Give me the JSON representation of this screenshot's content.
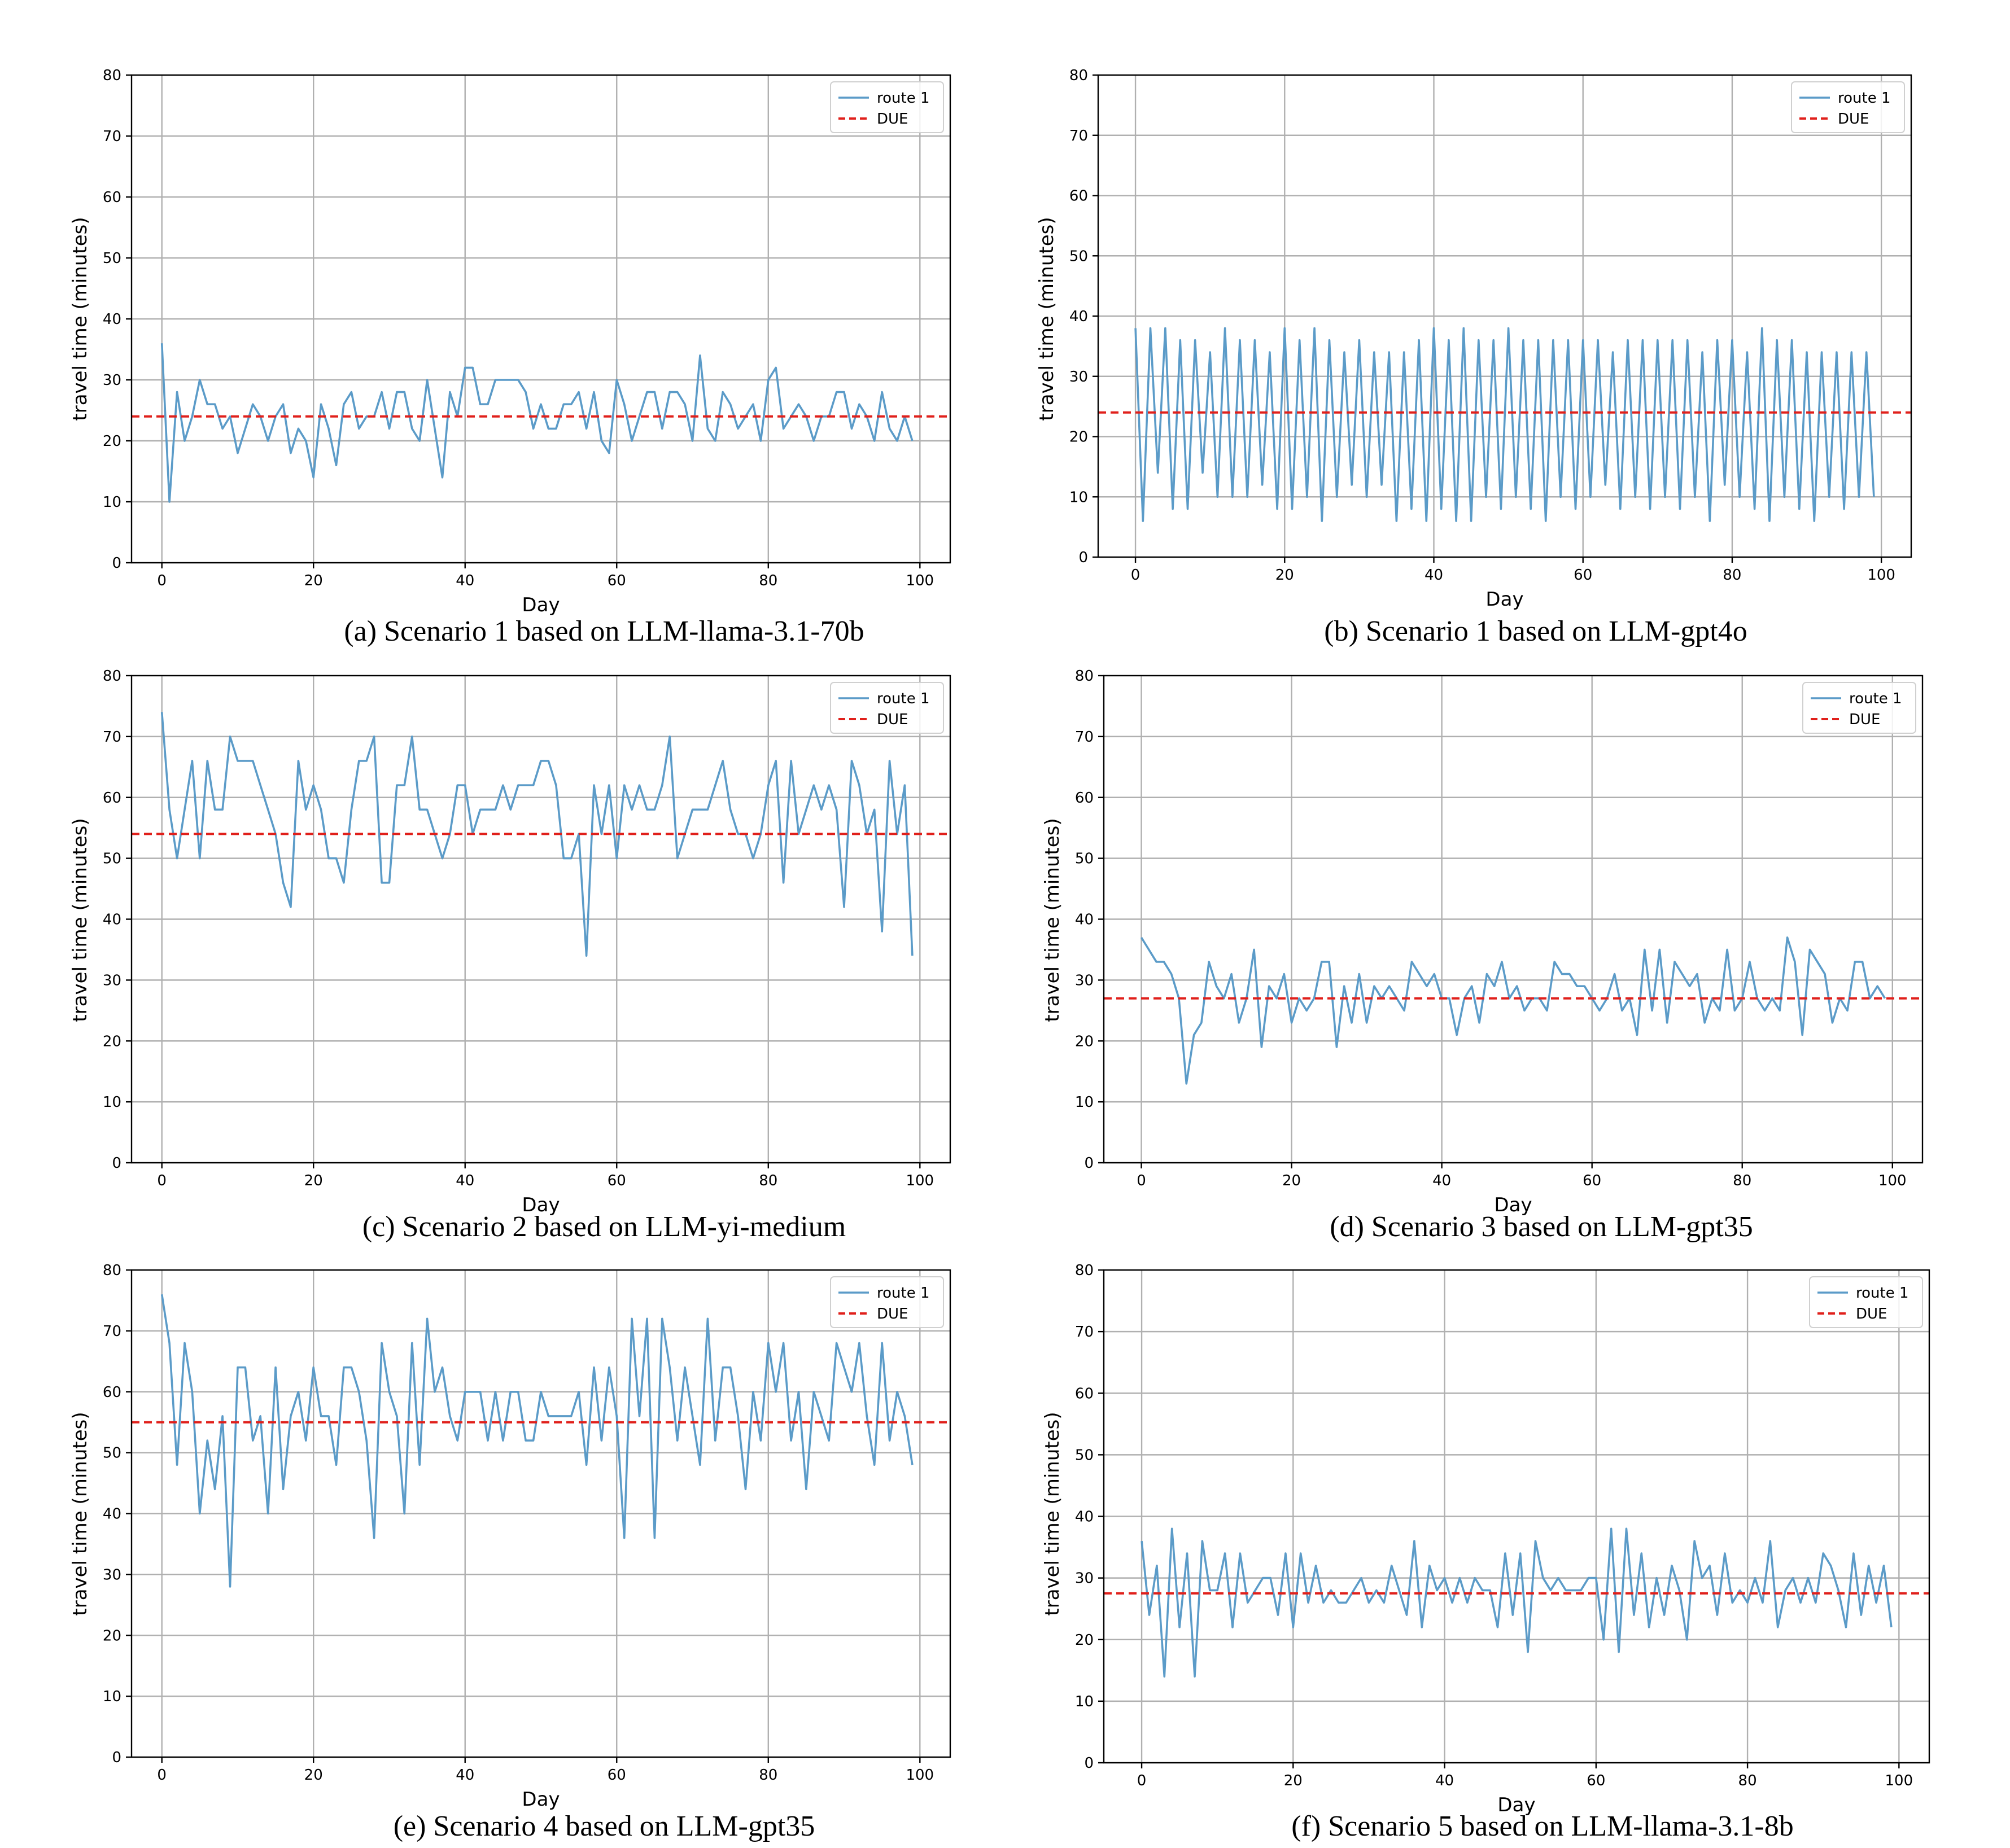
{
  "chart_data": [
    {
      "type": "line",
      "caption": "(a) Scenario 1 based on LLM-llama-3.1-70b",
      "xlabel": "Day",
      "ylabel": "travel time (minutes)",
      "xlim": [
        -4,
        104
      ],
      "ylim": [
        0,
        80
      ],
      "xticks": [
        0,
        20,
        40,
        60,
        80,
        100
      ],
      "yticks": [
        0,
        10,
        20,
        30,
        40,
        50,
        60,
        70,
        80
      ],
      "grid": true,
      "legend_position": "top-right",
      "series": [
        {
          "name": "route 1",
          "color": "#5b9bc8",
          "y": [
            36,
            10,
            28,
            20,
            24,
            30,
            26,
            26,
            22,
            24,
            18,
            22,
            26,
            24,
            20,
            24,
            26,
            18,
            22,
            20,
            14,
            26,
            22,
            16,
            26,
            28,
            22,
            24,
            24,
            28,
            22,
            28,
            28,
            22,
            20,
            30,
            22,
            14,
            28,
            24,
            32,
            32,
            26,
            26,
            30,
            30,
            30,
            30,
            28,
            22,
            26,
            22,
            22,
            26,
            26,
            28,
            22,
            28,
            20,
            18,
            30,
            26,
            20,
            24,
            28,
            28,
            22,
            28,
            28,
            26,
            20,
            34,
            22,
            20,
            28,
            26,
            22,
            24,
            26,
            20,
            30,
            32,
            22,
            24,
            26,
            24,
            20,
            24,
            24,
            28,
            28,
            22,
            26,
            24,
            20,
            28,
            22,
            20,
            24,
            20
          ]
        },
        {
          "name": "DUE",
          "color": "#e0201b",
          "dashed": true,
          "constant": 24
        }
      ]
    },
    {
      "type": "line",
      "caption": "(b) Scenario 1 based on LLM-gpt4o",
      "xlabel": "Day",
      "ylabel": "travel time (minutes)",
      "xlim": [
        -5,
        104
      ],
      "ylim": [
        0,
        80
      ],
      "xticks": [
        0,
        20,
        40,
        60,
        80,
        100
      ],
      "yticks": [
        0,
        10,
        20,
        30,
        40,
        50,
        60,
        70,
        80
      ],
      "grid": true,
      "legend_position": "top-right",
      "series": [
        {
          "name": "route 1",
          "color": "#5b9bc8",
          "y": [
            38,
            6,
            38,
            14,
            38,
            8,
            36,
            8,
            36,
            14,
            34,
            10,
            38,
            10,
            36,
            10,
            36,
            12,
            34,
            8,
            38,
            8,
            36,
            10,
            38,
            6,
            36,
            10,
            34,
            12,
            36,
            10,
            34,
            12,
            34,
            6,
            34,
            8,
            36,
            6,
            38,
            8,
            36,
            6,
            38,
            6,
            36,
            10,
            36,
            8,
            38,
            10,
            36,
            8,
            36,
            6,
            36,
            10,
            36,
            8,
            36,
            10,
            36,
            12,
            34,
            8,
            36,
            10,
            36,
            8,
            36,
            10,
            36,
            8,
            36,
            10,
            34,
            6,
            36,
            12,
            36,
            10,
            34,
            8,
            38,
            6,
            36,
            10,
            36,
            8,
            34,
            6,
            34,
            10,
            34,
            8,
            34,
            10,
            34,
            10
          ]
        },
        {
          "name": "DUE",
          "color": "#e0201b",
          "dashed": true,
          "constant": 24
        }
      ]
    },
    {
      "type": "line",
      "caption": "(c) Scenario 2 based on LLM-yi-medium",
      "xlabel": "Day",
      "ylabel": "travel time (minutes)",
      "xlim": [
        -4,
        104
      ],
      "ylim": [
        0,
        80
      ],
      "xticks": [
        0,
        20,
        40,
        60,
        80,
        100
      ],
      "yticks": [
        0,
        10,
        20,
        30,
        40,
        50,
        60,
        70,
        80
      ],
      "grid": true,
      "legend_position": "top-right",
      "series": [
        {
          "name": "route 1",
          "color": "#5b9bc8",
          "y": [
            74,
            58,
            50,
            58,
            66,
            50,
            66,
            58,
            58,
            70,
            66,
            66,
            66,
            62,
            58,
            54,
            46,
            42,
            66,
            58,
            62,
            58,
            50,
            50,
            46,
            58,
            66,
            66,
            70,
            46,
            46,
            62,
            62,
            70,
            58,
            58,
            54,
            50,
            54,
            62,
            62,
            54,
            58,
            58,
            58,
            62,
            58,
            62,
            62,
            62,
            66,
            66,
            62,
            50,
            50,
            54,
            34,
            62,
            54,
            62,
            50,
            62,
            58,
            62,
            58,
            58,
            62,
            70,
            50,
            54,
            58,
            58,
            58,
            62,
            66,
            58,
            54,
            54,
            50,
            54,
            62,
            66,
            46,
            66,
            54,
            58,
            62,
            58,
            62,
            58,
            42,
            66,
            62,
            54,
            58,
            38,
            66,
            54,
            62,
            34
          ]
        },
        {
          "name": "DUE",
          "color": "#e0201b",
          "dashed": true,
          "constant": 54
        }
      ]
    },
    {
      "type": "line",
      "caption": "(d) Scenario 3 based on LLM-gpt35",
      "xlabel": "Day",
      "ylabel": "travel time (minutes)",
      "xlim": [
        -5,
        104
      ],
      "ylim": [
        0,
        80
      ],
      "xticks": [
        0,
        20,
        40,
        60,
        80,
        100
      ],
      "yticks": [
        0,
        10,
        20,
        30,
        40,
        50,
        60,
        70,
        80
      ],
      "grid": true,
      "legend_position": "top-right",
      "series": [
        {
          "name": "route 1",
          "color": "#5b9bc8",
          "y": [
            37,
            35,
            33,
            33,
            31,
            27,
            13,
            21,
            23,
            33,
            29,
            27,
            31,
            23,
            27,
            35,
            19,
            29,
            27,
            31,
            23,
            27,
            25,
            27,
            33,
            33,
            19,
            29,
            23,
            31,
            23,
            29,
            27,
            29,
            27,
            25,
            33,
            31,
            29,
            31,
            27,
            27,
            21,
            27,
            29,
            23,
            31,
            29,
            33,
            27,
            29,
            25,
            27,
            27,
            25,
            33,
            31,
            31,
            29,
            29,
            27,
            25,
            27,
            31,
            25,
            27,
            21,
            35,
            25,
            35,
            23,
            33,
            31,
            29,
            31,
            23,
            27,
            25,
            35,
            25,
            27,
            33,
            27,
            25,
            27,
            25,
            37,
            33,
            21,
            35,
            33,
            31,
            23,
            27,
            25,
            33,
            33,
            27,
            29,
            27
          ]
        },
        {
          "name": "DUE",
          "color": "#e0201b",
          "dashed": true,
          "constant": 27
        }
      ]
    },
    {
      "type": "line",
      "caption": "(e) Scenario 4 based on LLM-gpt35",
      "xlabel": "Day",
      "ylabel": "travel time (minutes)",
      "xlim": [
        -4,
        104
      ],
      "ylim": [
        0,
        80
      ],
      "xticks": [
        0,
        20,
        40,
        60,
        80,
        100
      ],
      "yticks": [
        0,
        10,
        20,
        30,
        40,
        50,
        60,
        70,
        80
      ],
      "grid": true,
      "legend_position": "top-right",
      "series": [
        {
          "name": "route 1",
          "color": "#5b9bc8",
          "y": [
            76,
            68,
            48,
            68,
            60,
            40,
            52,
            44,
            56,
            28,
            64,
            64,
            52,
            56,
            40,
            64,
            44,
            56,
            60,
            52,
            64,
            56,
            56,
            48,
            64,
            64,
            60,
            52,
            36,
            68,
            60,
            56,
            40,
            68,
            48,
            72,
            60,
            64,
            56,
            52,
            60,
            60,
            60,
            52,
            60,
            52,
            60,
            60,
            52,
            52,
            60,
            56,
            56,
            56,
            56,
            60,
            48,
            64,
            52,
            64,
            56,
            36,
            72,
            56,
            72,
            36,
            72,
            64,
            52,
            64,
            56,
            48,
            72,
            52,
            64,
            64,
            56,
            44,
            60,
            52,
            68,
            60,
            68,
            52,
            60,
            44,
            60,
            56,
            52,
            68,
            64,
            60,
            68,
            56,
            48,
            68,
            52,
            60,
            56,
            48
          ]
        },
        {
          "name": "DUE",
          "color": "#e0201b",
          "dashed": true,
          "constant": 55
        }
      ]
    },
    {
      "type": "line",
      "caption": "(f) Scenario 5 based on LLM-llama-3.1-8b",
      "xlabel": "Day",
      "ylabel": "travel time (minutes)",
      "xlim": [
        -5,
        104
      ],
      "ylim": [
        0,
        80
      ],
      "xticks": [
        0,
        20,
        40,
        60,
        80,
        100
      ],
      "yticks": [
        0,
        10,
        20,
        30,
        40,
        50,
        60,
        70,
        80
      ],
      "grid": true,
      "legend_position": "top-right",
      "series": [
        {
          "name": "route 1",
          "color": "#5b9bc8",
          "y": [
            36,
            24,
            32,
            14,
            38,
            22,
            34,
            14,
            36,
            28,
            28,
            34,
            22,
            34,
            26,
            28,
            30,
            30,
            24,
            34,
            22,
            34,
            26,
            32,
            26,
            28,
            26,
            26,
            28,
            30,
            26,
            28,
            26,
            32,
            28,
            24,
            36,
            22,
            32,
            28,
            30,
            26,
            30,
            26,
            30,
            28,
            28,
            22,
            34,
            24,
            34,
            18,
            36,
            30,
            28,
            30,
            28,
            28,
            28,
            30,
            30,
            20,
            38,
            18,
            38,
            24,
            34,
            22,
            30,
            24,
            32,
            28,
            20,
            36,
            30,
            32,
            24,
            34,
            26,
            28,
            26,
            30,
            26,
            36,
            22,
            28,
            30,
            26,
            30,
            26,
            34,
            32,
            28,
            22,
            34,
            24,
            32,
            26,
            32,
            22
          ]
        },
        {
          "name": "DUE",
          "color": "#e0201b",
          "dashed": true,
          "constant": 27.5
        }
      ]
    }
  ]
}
